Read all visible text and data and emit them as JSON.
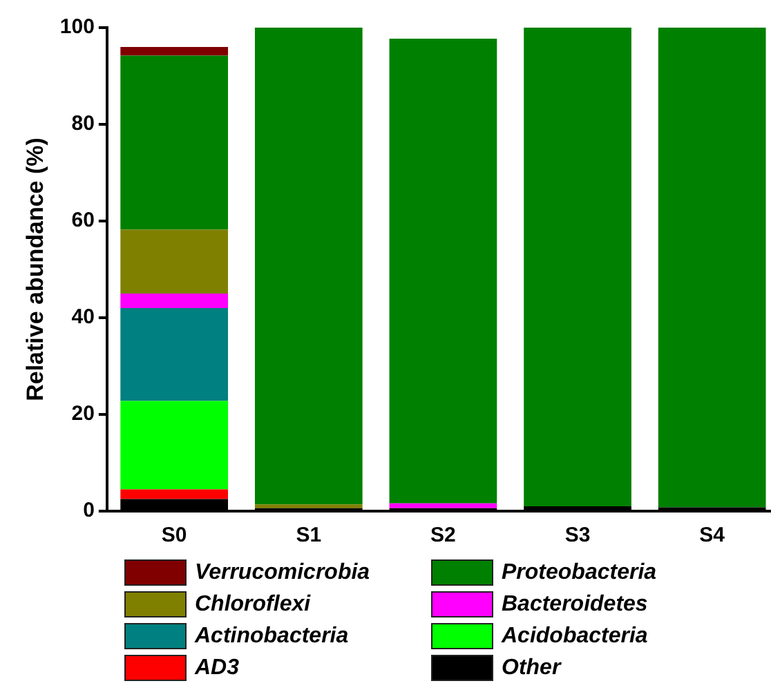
{
  "chart_data": {
    "type": "bar",
    "stacked": true,
    "ylabel": "Relative abundance (%)",
    "categories": [
      "S0",
      "S1",
      "S2",
      "S3",
      "S4"
    ],
    "ylim": [
      0,
      100
    ],
    "yticks": [
      0,
      20,
      40,
      60,
      80,
      100
    ],
    "grid": false,
    "legend": "bottom",
    "series": [
      {
        "name": "Other",
        "color": "#000000",
        "values": [
          2.5,
          0.6,
          0.6,
          1,
          0.8
        ]
      },
      {
        "name": "AD3",
        "color": "#ff0000",
        "values": [
          2,
          null,
          null,
          null,
          null
        ]
      },
      {
        "name": "Acidobacteria",
        "color": "#00ff00",
        "values": [
          18.3,
          null,
          null,
          null,
          null
        ]
      },
      {
        "name": "Actinobacteria",
        "color": "#008080",
        "values": [
          19.2,
          null,
          null,
          null,
          null
        ]
      },
      {
        "name": "Bacteroidetes",
        "color": "#ff00ff",
        "values": [
          3,
          null,
          1,
          null,
          null
        ]
      },
      {
        "name": "Chloroflexi",
        "color": "#808000",
        "values": [
          13.2,
          0.8,
          null,
          null,
          null
        ]
      },
      {
        "name": "Proteobacteria",
        "color": "#008000",
        "values": [
          36,
          98.6,
          96.1,
          99,
          99.2
        ]
      },
      {
        "name": "Verrucomicrobia",
        "color": "#800000",
        "values": [
          1.8,
          null,
          null,
          null,
          null
        ]
      }
    ]
  }
}
